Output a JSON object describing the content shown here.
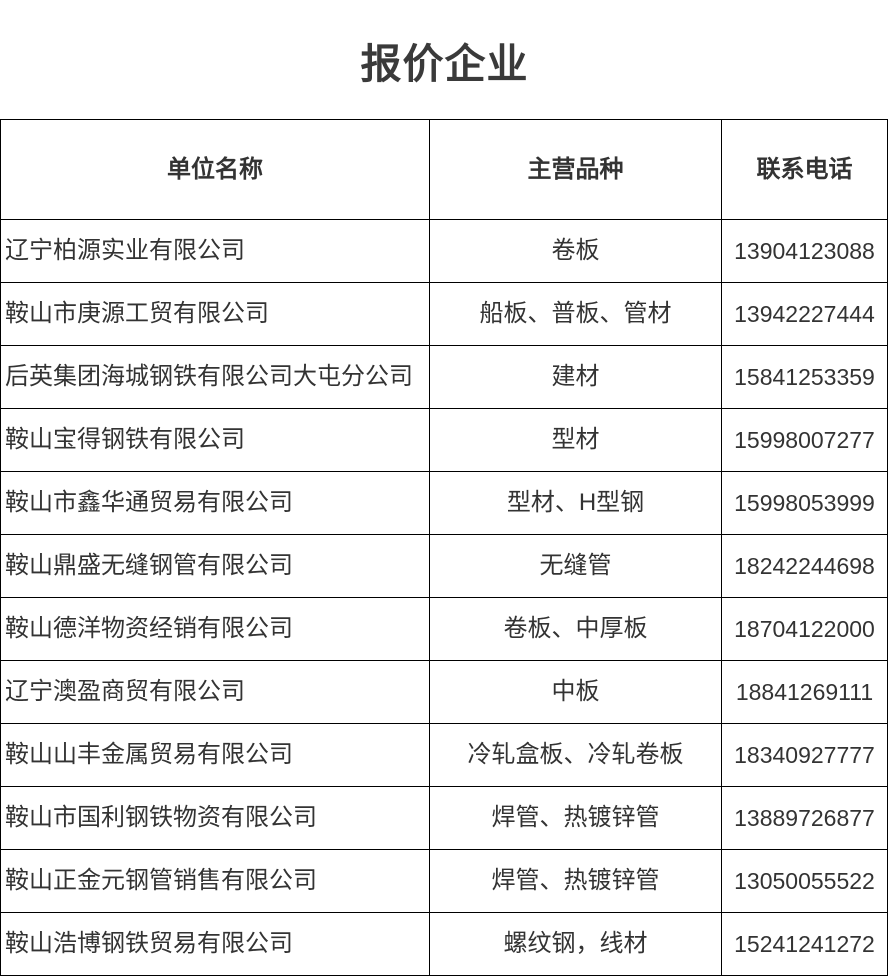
{
  "title": "报价企业",
  "table": {
    "headers": {
      "company": "单位名称",
      "products": "主营品种",
      "phone": "联系电话"
    },
    "rows": [
      {
        "company": "辽宁柏源实业有限公司",
        "products": "卷板",
        "phone": "13904123088"
      },
      {
        "company": "鞍山市庚源工贸有限公司",
        "products": "船板、普板、管材",
        "phone": "13942227444"
      },
      {
        "company": "后英集团海城钢铁有限公司大屯分公司",
        "products": "建材",
        "phone": "15841253359"
      },
      {
        "company": "鞍山宝得钢铁有限公司",
        "products": "型材",
        "phone": "15998007277"
      },
      {
        "company": "鞍山市鑫华通贸易有限公司",
        "products": "型材、H型钢",
        "phone": "15998053999"
      },
      {
        "company": "鞍山鼎盛无缝钢管有限公司",
        "products": "无缝管",
        "phone": "18242244698"
      },
      {
        "company": "鞍山德洋物资经销有限公司",
        "products": "卷板、中厚板",
        "phone": "18704122000"
      },
      {
        "company": "辽宁澳盈商贸有限公司",
        "products": "中板",
        "phone": "18841269111"
      },
      {
        "company": "鞍山山丰金属贸易有限公司",
        "products": "冷轧盒板、冷轧卷板",
        "phone": "18340927777"
      },
      {
        "company": "鞍山市国利钢铁物资有限公司",
        "products": "焊管、热镀锌管",
        "phone": "13889726877"
      },
      {
        "company": "鞍山正金元钢管销售有限公司",
        "products": "焊管、热镀锌管",
        "phone": "13050055522"
      },
      {
        "company": "鞍山浩博钢铁贸易有限公司",
        "products": "螺纹钢，线材",
        "phone": "15241241272"
      }
    ]
  },
  "colors": {
    "text": "#333333",
    "border": "#000000",
    "background": "#ffffff"
  }
}
